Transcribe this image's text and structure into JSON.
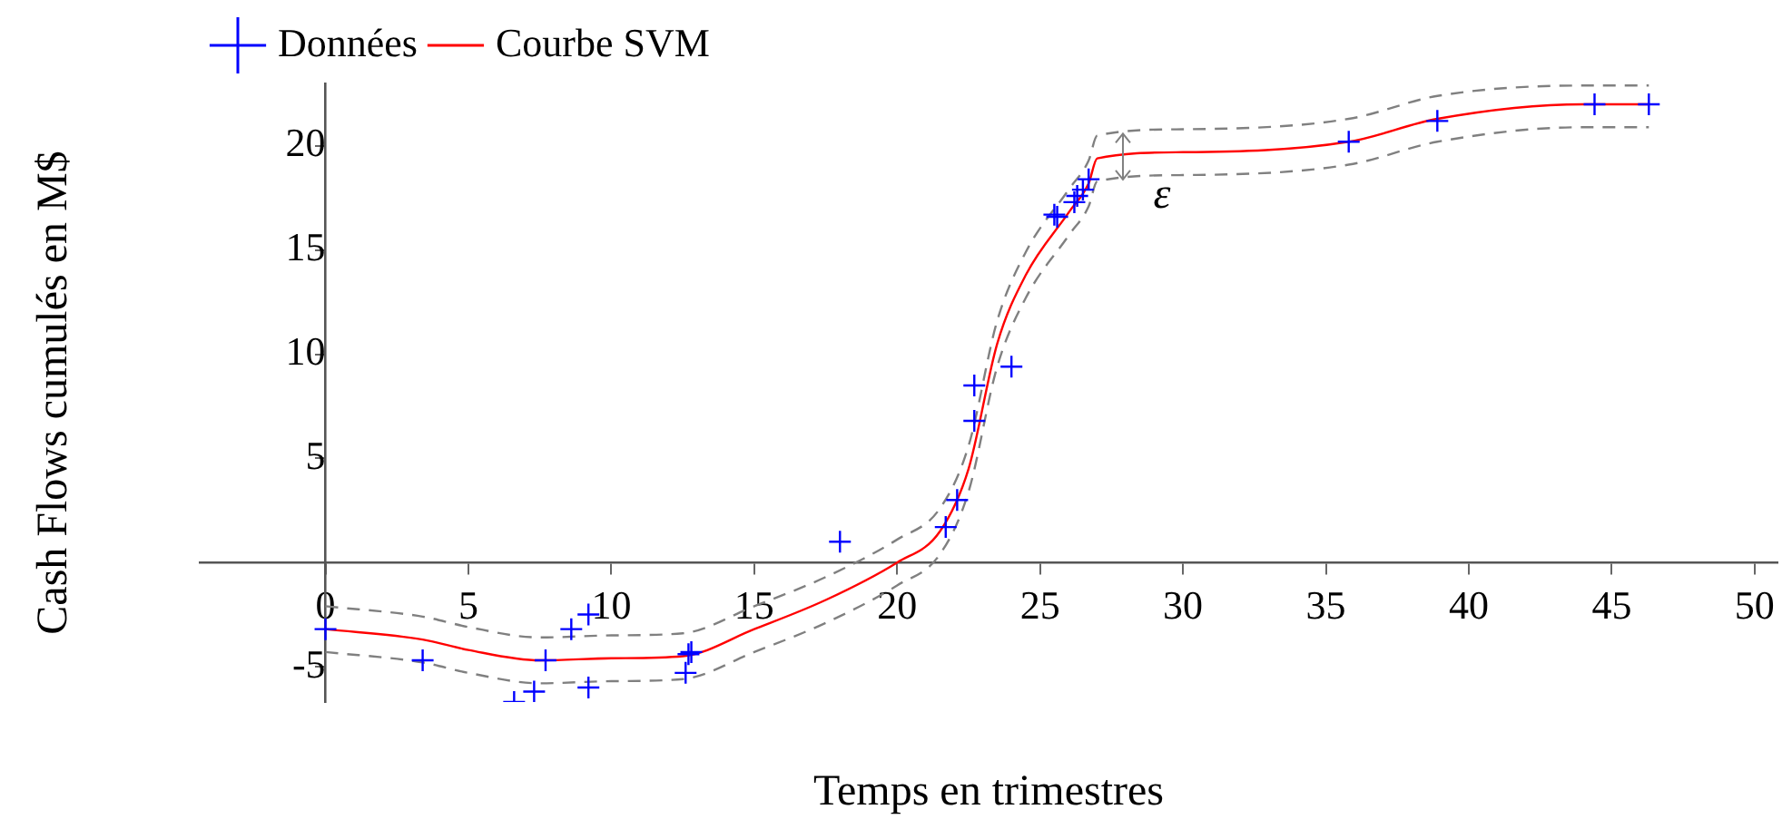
{
  "chart_data": {
    "type": "line",
    "xlabel": "Temps en trimestres",
    "ylabel": "Cash Flows cumulés en M$",
    "xlim": [
      -4.4,
      50.8
    ],
    "ylim": [
      -6.7,
      23
    ],
    "xticks": [
      0,
      5,
      10,
      15,
      20,
      25,
      30,
      35,
      40,
      45,
      50
    ],
    "yticks": [
      -5,
      {
        "value": 0,
        "label": null
      },
      5,
      10,
      15,
      20
    ],
    "grid": false,
    "legend": "top left",
    "annotations": [
      {
        "text": "ε",
        "x": 28.5,
        "y": 18.1
      }
    ],
    "series": [
      {
        "name": "Données",
        "type": "scatter",
        "marker": "cross",
        "color": "#0000ff",
        "x": [
          0,
          3.4,
          6.6,
          7.3,
          7.7,
          8.6,
          9.2,
          9.2,
          12.6,
          12.7,
          12.8,
          18.0,
          21.7,
          22.1,
          22.7,
          22.7,
          24.0,
          25.5,
          25.6,
          26.2,
          26.3,
          26.5,
          26.7,
          35.8,
          38.9,
          44.4,
          46.3
        ],
        "values": [
          -3.2,
          -4.7,
          -6.7,
          -6.2,
          -4.7,
          -3.2,
          -2.5,
          -6.0,
          -5.3,
          -4.4,
          -4.3,
          1.0,
          1.7,
          3.0,
          6.8,
          8.5,
          9.4,
          16.7,
          16.6,
          17.3,
          17.6,
          17.9,
          18.4,
          20.2,
          21.2,
          22.0,
          22.0
        ]
      },
      {
        "name": "Courbe SVM",
        "type": "line",
        "marker": "none",
        "line_style": "solid",
        "color": "#ff0000",
        "x": [
          0,
          3.4,
          5,
          7.5,
          10,
          12.5,
          15,
          17.5,
          20,
          21.5,
          22.5,
          23.5,
          24.5,
          26,
          26.7,
          27,
          30,
          35.8,
          38.9,
          44,
          46.3
        ],
        "values": [
          -3.2,
          -3.7,
          -4.2,
          -4.7,
          -4.6,
          -4.5,
          -3.2,
          -1.8,
          0,
          1.5,
          4.5,
          10.5,
          13.8,
          16.8,
          18.2,
          19.4,
          19.7,
          20.2,
          21.3,
          22,
          22
        ]
      },
      {
        "type": "line",
        "marker": "none",
        "line_style": "dashed",
        "color": "#808080",
        "x": [
          0,
          3.4,
          5,
          7.5,
          10,
          12.5,
          15,
          17.5,
          20,
          21.5,
          22.5,
          23.5,
          24.5,
          26,
          26.7,
          27,
          30,
          35.8,
          38.9,
          44,
          46.3
        ],
        "values": [
          -2.1,
          -2.6,
          -3.1,
          -3.6,
          -3.5,
          -3.4,
          -2.1,
          -0.7,
          1.1,
          2.6,
          5.6,
          11.6,
          14.9,
          17.9,
          19.3,
          20.5,
          20.8,
          21.3,
          22.4,
          22.9,
          22.9
        ]
      },
      {
        "type": "line",
        "marker": "none",
        "line_style": "dashed",
        "color": "#808080",
        "x": [
          0,
          3.4,
          5,
          7.5,
          10,
          12.5,
          15,
          17.5,
          20,
          21.5,
          22.5,
          23.5,
          24.5,
          26,
          26.7,
          27,
          30,
          35.8,
          38.9,
          44,
          46.3
        ],
        "values": [
          -4.3,
          -4.8,
          -5.3,
          -5.8,
          -5.7,
          -5.6,
          -4.3,
          -2.9,
          -1.1,
          0.4,
          3.4,
          9.4,
          12.7,
          15.7,
          17.1,
          18.3,
          18.6,
          19.1,
          20.2,
          20.9,
          20.9
        ]
      }
    ]
  }
}
